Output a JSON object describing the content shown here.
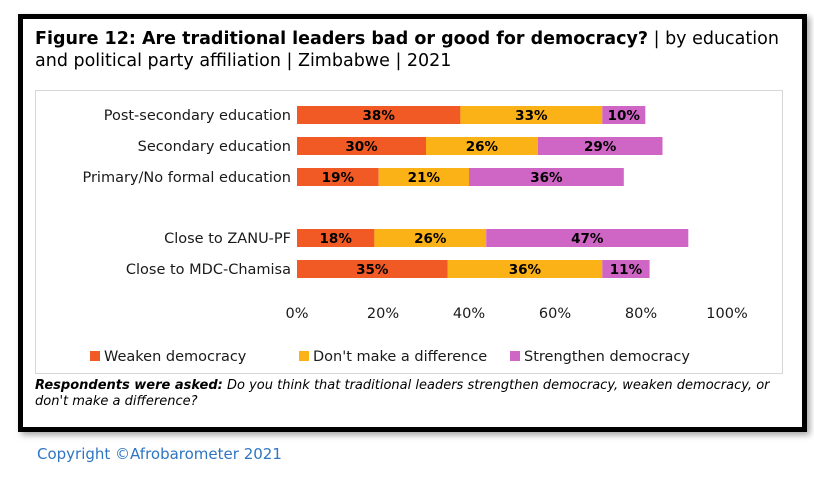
{
  "figure": {
    "title_bold": "Figure 12: Are traditional leaders bad or good for democracy?",
    "title_rest": " | by education and political party affiliation | Zimbabwe | 2021"
  },
  "note": {
    "label": "Respondents were asked:",
    "text": " Do you think that traditional leaders strengthen democracy, weaken democracy, or don't make a difference?"
  },
  "copyright": "Copyright ©Afrobarometer 2021",
  "chart_data": {
    "type": "bar",
    "orientation": "horizontal",
    "stacked": true,
    "categories": [
      "Post-secondary education",
      "Secondary education",
      "Primary/No formal education",
      "Close to ZANU-PF",
      "Close to MDC-Chamisa"
    ],
    "series": [
      {
        "name": "Weaken democracy",
        "color": "#f15a24",
        "values": [
          38,
          30,
          19,
          18,
          35
        ]
      },
      {
        "name": "Don't make a difference",
        "color": "#fbb217",
        "values": [
          33,
          26,
          21,
          26,
          36
        ]
      },
      {
        "name": "Strengthen democracy",
        "color": "#cf65c5",
        "values": [
          10,
          29,
          36,
          47,
          11
        ]
      }
    ],
    "value_format": "{v}%",
    "xlim": [
      0,
      100
    ],
    "x_ticks": [
      "0%",
      "20%",
      "40%",
      "60%",
      "80%",
      "100%"
    ],
    "x_tick_values": [
      0,
      20,
      40,
      60,
      80,
      100
    ],
    "grid": false,
    "legend_position": "bottom"
  }
}
